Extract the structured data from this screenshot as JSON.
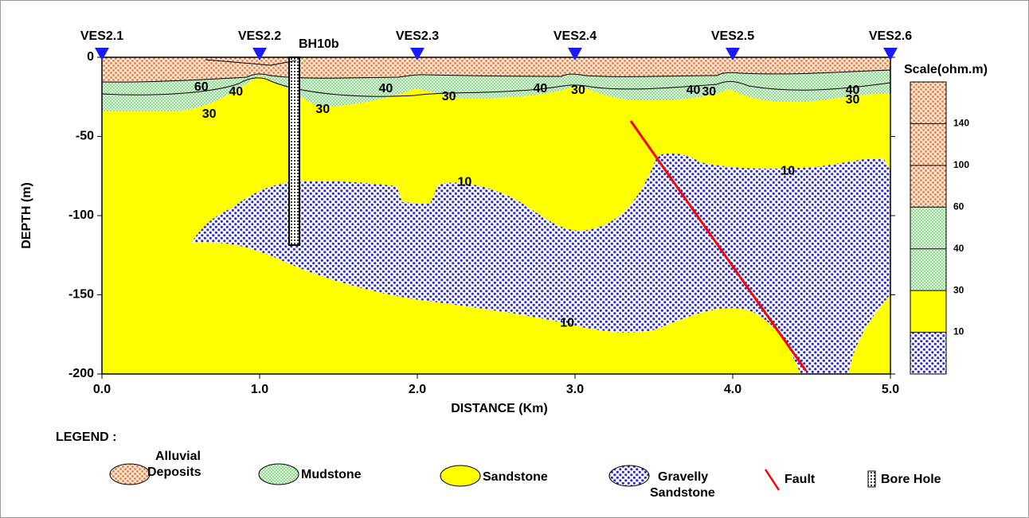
{
  "chart_data": {
    "type": "section",
    "xlabel": "DISTANCE (Km)",
    "ylabel": "DEPTH (m)",
    "xlim": [
      0,
      5
    ],
    "ylim": [
      -200,
      0
    ],
    "xticks": [
      {
        "value": 0,
        "label": "0.0"
      },
      {
        "value": 1,
        "label": "1.0"
      },
      {
        "value": 2,
        "label": "2.0"
      },
      {
        "value": 3,
        "label": "3.0"
      },
      {
        "value": 4,
        "label": "4.0"
      },
      {
        "value": 5,
        "label": "5.0"
      }
    ],
    "yticks": [
      0,
      -50,
      -100,
      -150,
      -200
    ],
    "stations": [
      {
        "name": "VES2.1",
        "x": 0
      },
      {
        "name": "VES2.2",
        "x": 1
      },
      {
        "name": "VES2.3",
        "x": 2
      },
      {
        "name": "VES2.4",
        "x": 3
      },
      {
        "name": "VES2.5",
        "x": 4
      },
      {
        "name": "VES2.6",
        "x": 5
      }
    ],
    "borehole": "BH10b",
    "contour_labels": [
      {
        "text": "60",
        "x": 0.63,
        "y": -19
      },
      {
        "text": "40",
        "x": 0.85,
        "y": -22
      },
      {
        "text": "30",
        "x": 0.68,
        "y": -36
      },
      {
        "text": "30",
        "x": 1.4,
        "y": -33
      },
      {
        "text": "40",
        "x": 1.8,
        "y": -20
      },
      {
        "text": "30",
        "x": 2.2,
        "y": -25
      },
      {
        "text": "40",
        "x": 2.78,
        "y": -20
      },
      {
        "text": "30",
        "x": 3.02,
        "y": -21
      },
      {
        "text": "40",
        "x": 3.75,
        "y": -21
      },
      {
        "text": "30",
        "x": 3.85,
        "y": -22
      },
      {
        "text": "40",
        "x": 4.76,
        "y": -21
      },
      {
        "text": "30",
        "x": 4.76,
        "y": -27
      },
      {
        "text": "10",
        "x": 2.3,
        "y": -79
      },
      {
        "text": "10",
        "x": 4.35,
        "y": -72
      },
      {
        "text": "10",
        "x": 2.95,
        "y": -168
      }
    ],
    "scale": {
      "title": "Scale(ohm.m)",
      "levels": [
        140,
        100,
        60,
        40,
        30,
        10
      ]
    },
    "legend": {
      "title": "LEGEND :",
      "items": [
        {
          "lines": [
            "Alluvial",
            "Deposits"
          ]
        },
        {
          "lines": [
            "Mudstone"
          ]
        },
        {
          "lines": [
            "Sandstone"
          ]
        },
        {
          "lines": [
            "Gravelly",
            "Sandstone"
          ]
        },
        {
          "lines": [
            "Fault"
          ]
        },
        {
          "lines": [
            "Bore Hole"
          ]
        }
      ]
    }
  }
}
